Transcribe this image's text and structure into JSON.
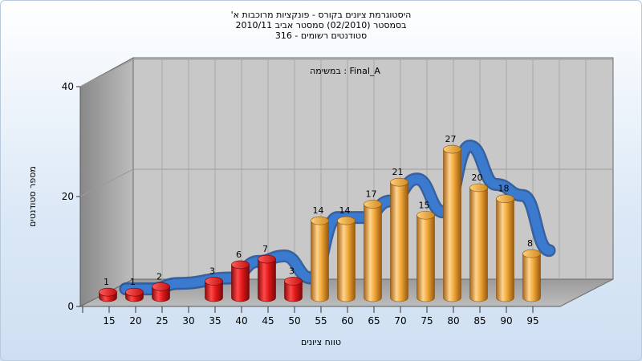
{
  "titles": {
    "line1": "היסטוגרמת ציונים בקורס - פונקציות מרוכבות א'",
    "line2": "בסמסטר  (02/2010)  סמסטר אביב 2010/11",
    "line3": "סטודנטים רשומים - 316"
  },
  "chart_data": {
    "type": "bar",
    "subtitle": "במשימה : Final_A",
    "xlabel": "טווח ציונים",
    "ylabel": "מספר סטודנטים",
    "categories": [
      "15",
      "20",
      "25",
      "30",
      "35",
      "40",
      "45",
      "50",
      "55",
      "60",
      "65",
      "70",
      "75",
      "80",
      "85",
      "90",
      "95"
    ],
    "values": [
      1,
      1,
      2,
      null,
      3,
      6,
      7,
      3,
      14,
      14,
      17,
      21,
      15,
      27,
      20,
      18,
      8
    ],
    "value_labels": [
      "1",
      "1",
      "2",
      "",
      "3",
      "6",
      "7",
      "3",
      "14",
      "14",
      "17",
      "21",
      "15",
      "27",
      "20",
      "18",
      "8"
    ],
    "ylim": [
      0,
      40
    ],
    "yticks": [
      "0",
      "20",
      "40"
    ],
    "fail_threshold": 55,
    "colors": {
      "fail": "#e01818",
      "pass": "#f0a838",
      "curve": "#3a7bd0"
    },
    "projection": "3d",
    "grid": true,
    "legend": "none"
  }
}
